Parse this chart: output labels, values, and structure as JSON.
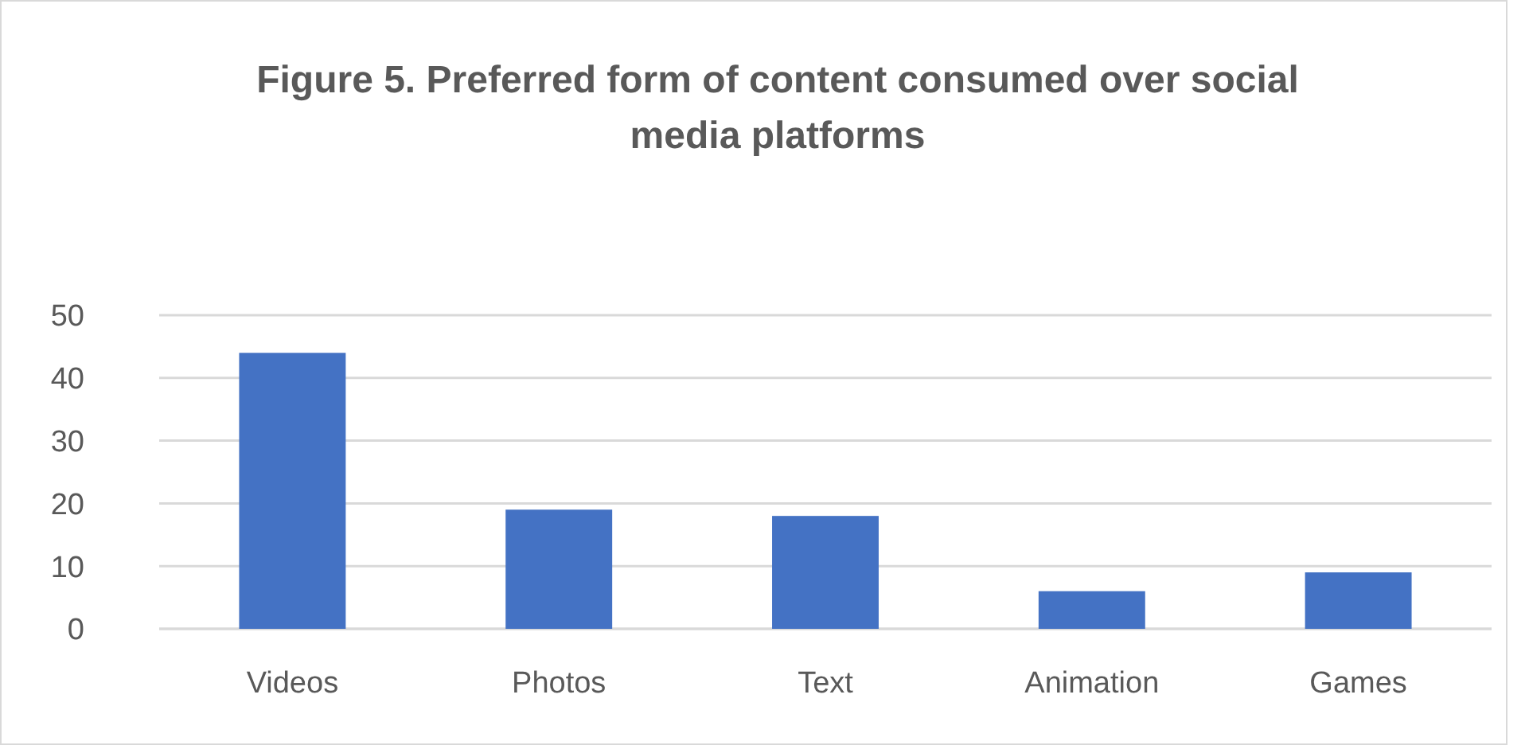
{
  "chart_data": {
    "type": "bar",
    "title": "Figure 5. Preferred form of content consumed over social media platforms",
    "categories": [
      "Videos",
      "Photos",
      "Text",
      "Animation",
      "Games"
    ],
    "values": [
      44,
      19,
      18,
      6,
      9
    ],
    "color": "#4472c4",
    "ylim": [
      0,
      50
    ],
    "yticks": [
      0,
      10,
      20,
      30,
      40,
      50
    ],
    "grid": "y"
  }
}
